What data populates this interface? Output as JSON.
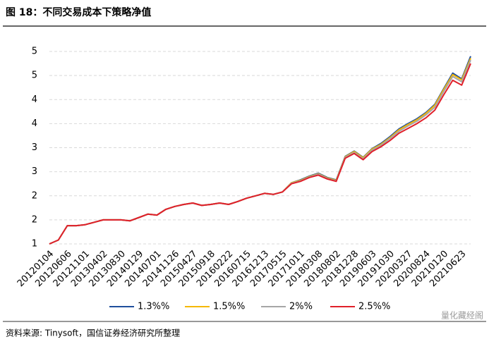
{
  "chart_data": {
    "type": "line",
    "title": "图 18：不同交易成本下策略净值",
    "source": "资料来源: Tinysoft，国信证券经济研究所整理",
    "watermark": "量化藏经阁",
    "categories": [
      "20120104",
      null,
      "20120606",
      null,
      "20121101",
      null,
      "20130402",
      null,
      "20130830",
      null,
      "20140129",
      null,
      "20140701",
      null,
      "20141126",
      null,
      "20150427",
      null,
      "20150918",
      null,
      "20160222",
      null,
      "20160715",
      null,
      "20161213",
      null,
      "20170515",
      null,
      "20171011",
      null,
      "20180308",
      null,
      "20180802",
      null,
      "20181228",
      null,
      "20190603",
      null,
      "20191030",
      null,
      "20200327",
      null,
      "20200824",
      null,
      "20210120",
      null,
      "20210623",
      null
    ],
    "ylim": [
      1,
      5
    ],
    "yticks": [
      1,
      {
        "value": 1.5,
        "label": "2"
      },
      2,
      {
        "value": 2.5,
        "label": "3"
      },
      3,
      {
        "value": 3.5,
        "label": "4"
      },
      4,
      {
        "value": 4.5,
        "label": "5"
      },
      5
    ],
    "grid": true,
    "legend": "bottom",
    "series": [
      {
        "name": "1.3%%",
        "color": "#1f4e9c",
        "values": [
          1.0,
          1.08,
          1.38,
          1.38,
          1.4,
          1.45,
          1.5,
          1.5,
          1.5,
          1.48,
          1.55,
          1.62,
          1.6,
          1.72,
          1.78,
          1.82,
          1.85,
          1.8,
          1.82,
          1.85,
          1.82,
          1.88,
          1.95,
          2.0,
          2.05,
          2.03,
          2.08,
          2.27,
          2.33,
          2.41,
          2.47,
          2.38,
          2.33,
          2.82,
          2.93,
          2.8,
          2.98,
          3.09,
          3.23,
          3.39,
          3.5,
          3.6,
          3.73,
          3.9,
          4.23,
          4.55,
          4.43,
          4.9
        ]
      },
      {
        "name": "1.5%%",
        "color": "#f5b800",
        "values": [
          1.0,
          1.08,
          1.38,
          1.38,
          1.4,
          1.45,
          1.5,
          1.5,
          1.5,
          1.48,
          1.55,
          1.62,
          1.6,
          1.72,
          1.78,
          1.82,
          1.85,
          1.8,
          1.82,
          1.85,
          1.82,
          1.88,
          1.95,
          2.0,
          2.05,
          2.03,
          2.08,
          2.27,
          2.32,
          2.4,
          2.46,
          2.37,
          2.32,
          2.81,
          2.92,
          2.79,
          2.97,
          3.07,
          3.21,
          3.37,
          3.48,
          3.58,
          3.71,
          3.88,
          4.21,
          4.52,
          4.41,
          4.86
        ]
      },
      {
        "name": "2%%",
        "color": "#a6a6a6",
        "values": [
          1.0,
          1.08,
          1.38,
          1.38,
          1.4,
          1.45,
          1.5,
          1.5,
          1.5,
          1.48,
          1.55,
          1.62,
          1.6,
          1.72,
          1.78,
          1.82,
          1.85,
          1.8,
          1.82,
          1.85,
          1.82,
          1.88,
          1.95,
          2.0,
          2.05,
          2.03,
          2.08,
          2.26,
          2.31,
          2.39,
          2.45,
          2.36,
          2.31,
          2.8,
          2.9,
          2.77,
          2.95,
          3.05,
          3.19,
          3.34,
          3.45,
          3.55,
          3.68,
          3.84,
          4.17,
          4.48,
          4.37,
          4.82
        ]
      },
      {
        "name": "2.5%%",
        "color": "#e0202a",
        "values": [
          1.0,
          1.08,
          1.38,
          1.38,
          1.4,
          1.45,
          1.5,
          1.5,
          1.5,
          1.48,
          1.55,
          1.62,
          1.6,
          1.72,
          1.78,
          1.82,
          1.85,
          1.8,
          1.82,
          1.85,
          1.82,
          1.88,
          1.95,
          2.0,
          2.05,
          2.03,
          2.08,
          2.25,
          2.3,
          2.38,
          2.43,
          2.35,
          2.3,
          2.78,
          2.88,
          2.75,
          2.92,
          3.02,
          3.15,
          3.3,
          3.4,
          3.5,
          3.62,
          3.78,
          4.1,
          4.4,
          4.3,
          4.75
        ]
      }
    ]
  }
}
